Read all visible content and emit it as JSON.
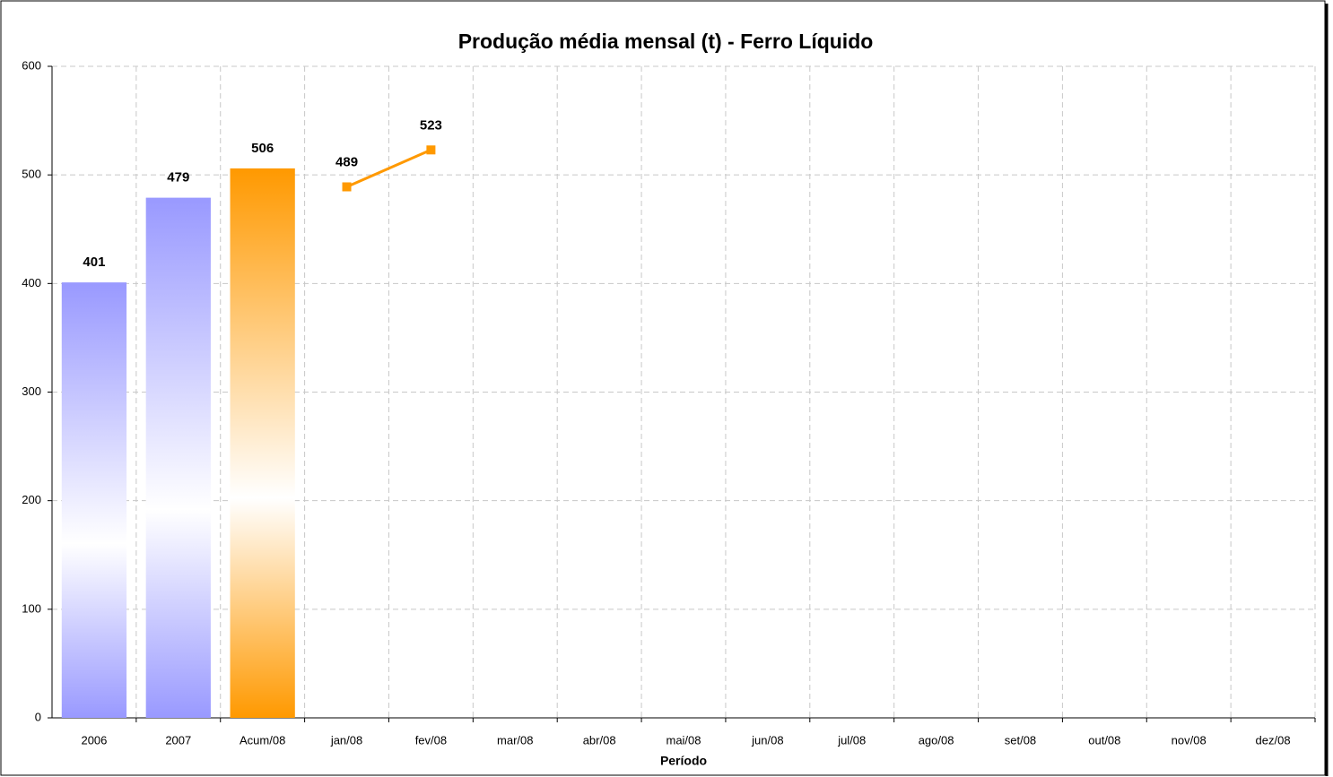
{
  "chart_data": {
    "type": "bar",
    "title": "Produção média mensal (t) - Ferro Líquido",
    "x_label": "Período",
    "categories": [
      "2006",
      "2007",
      "Acum/08",
      "jan/08",
      "fev/08",
      "mar/08",
      "abr/08",
      "mai/08",
      "jun/08",
      "jul/08",
      "ago/08",
      "set/08",
      "out/08",
      "nov/08",
      "dez/08"
    ],
    "series": [
      {
        "type": "bar",
        "color": "#9999ff",
        "values": [
          401,
          479,
          null,
          null,
          null,
          null,
          null,
          null,
          null,
          null,
          null,
          null,
          null,
          null,
          null
        ]
      },
      {
        "type": "bar",
        "color": "#ff9900",
        "values": [
          null,
          null,
          506,
          null,
          null,
          null,
          null,
          null,
          null,
          null,
          null,
          null,
          null,
          null,
          null
        ]
      },
      {
        "type": "line",
        "color": "#ff9900",
        "values": [
          null,
          null,
          null,
          489,
          523,
          null,
          null,
          null,
          null,
          null,
          null,
          null,
          null,
          null,
          null
        ]
      }
    ],
    "ylim": [
      0,
      600
    ],
    "yticks": [
      0,
      100,
      200,
      300,
      400,
      500,
      600
    ],
    "grid": true
  }
}
